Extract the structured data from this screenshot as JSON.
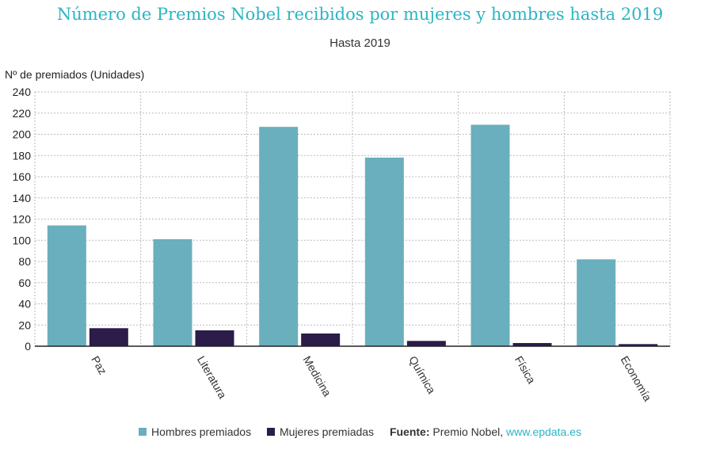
{
  "header": {
    "title": "Número de Premios Nobel recibidos por mujeres y hombres hasta 2019",
    "subtitle": "Hasta 2019"
  },
  "chart_data": {
    "type": "bar",
    "title": "Número de Premios Nobel recibidos por mujeres y hombres hasta 2019",
    "subtitle": "Hasta 2019",
    "ylabel": "Nº de premiados (Unidades)",
    "xlabel": "",
    "ylim": [
      0,
      240
    ],
    "yticks": [
      0,
      20,
      40,
      60,
      80,
      100,
      120,
      140,
      160,
      180,
      200,
      220,
      240
    ],
    "grid": true,
    "legend_position": "bottom",
    "categories": [
      "Paz",
      "Literatura",
      "Medicina",
      "Química",
      "Física",
      "Economía"
    ],
    "series": [
      {
        "name": "Hombres premiados",
        "color": "#6aafbd",
        "values": [
          114,
          101,
          207,
          178,
          209,
          82
        ]
      },
      {
        "name": "Mujeres premiadas",
        "color": "#2b1c4a",
        "values": [
          17,
          15,
          12,
          5,
          3,
          2
        ]
      }
    ]
  },
  "footer": {
    "source_label": "Fuente:",
    "source_text": " Premio Nobel, ",
    "source_link": "www.epdata.es"
  }
}
